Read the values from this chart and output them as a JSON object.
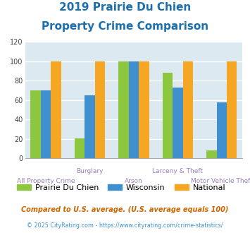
{
  "title_line1": "2019 Prairie Du Chien",
  "title_line2": "Property Crime Comparison",
  "title_color": "#1a6faf",
  "series": {
    "Prairie Du Chien": [
      70,
      21,
      100,
      88,
      8
    ],
    "Wisconsin": [
      70,
      65,
      100,
      73,
      58
    ],
    "National": [
      100,
      100,
      100,
      100,
      100
    ]
  },
  "colors": {
    "Prairie Du Chien": "#8dc63f",
    "Wisconsin": "#4090d0",
    "National": "#f5a623"
  },
  "ylim": [
    0,
    120
  ],
  "yticks": [
    0,
    20,
    40,
    60,
    80,
    100,
    120
  ],
  "plot_bg_color": "#dce9f0",
  "grid_color": "#ffffff",
  "xlabel_color": "#9b7eb8",
  "label_top": [
    "",
    "Burglary",
    "",
    "Larceny & Theft",
    ""
  ],
  "label_bot": [
    "All Property Crime",
    "",
    "Arson",
    "",
    "Motor Vehicle Theft"
  ],
  "footnote1": "Compared to U.S. average. (U.S. average equals 100)",
  "footnote2": "© 2025 CityRating.com - https://www.cityrating.com/crime-statistics/",
  "footnote1_color": "#cc6600",
  "footnote2_color": "#4090d0"
}
